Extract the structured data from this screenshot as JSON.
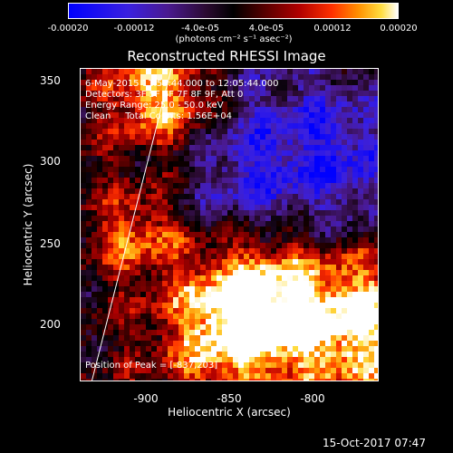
{
  "colorbar": {
    "ticks": [
      "-0.00020",
      "-0.00012",
      "-4.0e-05",
      "4.0e-05",
      "0.00012",
      "0.00020"
    ],
    "units": "(photons cm⁻² s⁻¹ asec⁻²)"
  },
  "title": "Reconstructed RHESSI Image",
  "info": {
    "line1": "6-May-2015 11:55:44.000 to 12:05:44.000",
    "line2": "Detectors: 3F 5F 6F 7F 8F 9F, Att 0",
    "line3": "Energy Range: 25.0 - 50.0 keV",
    "line4": "Clean     Total Counts: 1.56E+04",
    "peak": "Position of Peak = [-837,203]"
  },
  "axes": {
    "xlabel": "Heliocentric X (arcsec)",
    "ylabel": "Heliocentric Y (arcsec)",
    "xticks": [
      "-900",
      "-850",
      "-800"
    ],
    "yticks": [
      "350",
      "300",
      "250",
      "200"
    ]
  },
  "footer": {
    "date": "15-Oct-2017 07:47"
  },
  "chart_data": {
    "type": "heatmap",
    "title": "Reconstructed RHESSI Image",
    "xlabel": "Heliocentric X (arcsec)",
    "ylabel": "Heliocentric Y (arcsec)",
    "xlim": [
      -945,
      -830
    ],
    "ylim": [
      165,
      358
    ],
    "colorbar_range": [
      -0.0002,
      0.0002
    ],
    "peak": [
      -837,
      203
    ],
    "limb_line": true
  },
  "colors": {
    "background": "#000000",
    "foreground": "#ffffff"
  }
}
